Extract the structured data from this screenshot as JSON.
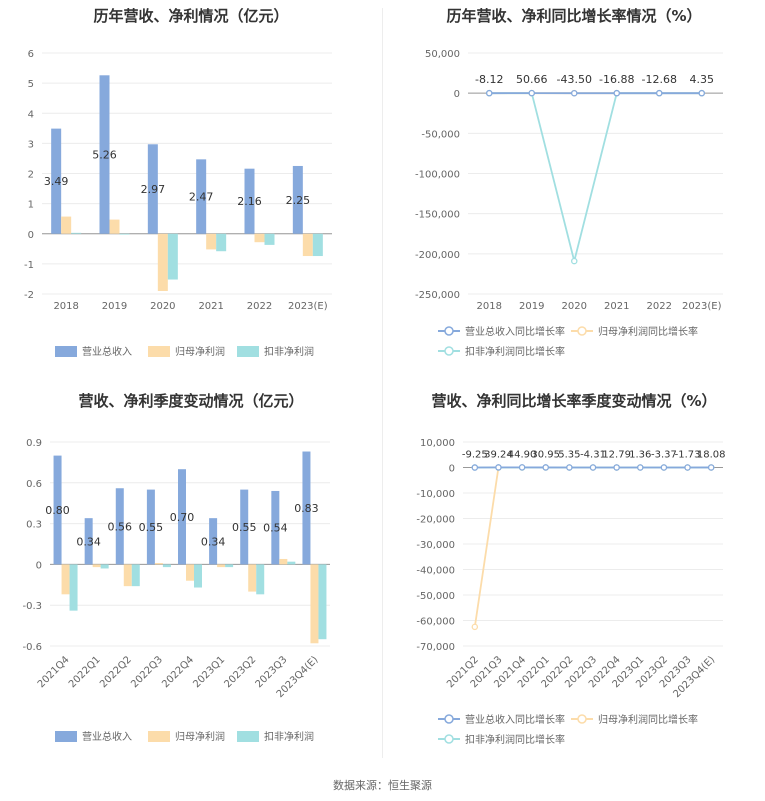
{
  "source": "数据来源：恒生聚源",
  "colors": {
    "rev": "#86a9dc",
    "net": "#fcdcaa",
    "ded": "#a1dfe1",
    "grid": "#ececec",
    "axis": "#999999",
    "text": "#666666",
    "label": "#333333"
  },
  "chart_data": [
    {
      "type": "bar",
      "title": "历年营收、净利情况（亿元）",
      "categories": [
        "2018",
        "2019",
        "2020",
        "2021",
        "2022",
        "2023(E)"
      ],
      "ylim": [
        -2,
        6
      ],
      "yticks": [
        -2,
        -1,
        0,
        1,
        2,
        3,
        4,
        5,
        6
      ],
      "ytick_labels": [
        "-2",
        "-1",
        "0",
        "1",
        "2",
        "3",
        "4",
        "5",
        "6"
      ],
      "series": [
        {
          "name": "营业总收入",
          "values": [
            3.49,
            5.26,
            2.97,
            2.47,
            2.16,
            2.25
          ],
          "labels": [
            "3.49",
            "5.26",
            "2.97",
            "2.47",
            "2.16",
            "2.25"
          ]
        },
        {
          "name": "归母净利润",
          "values": [
            0.57,
            0.47,
            -1.9,
            -0.52,
            -0.28,
            -0.74
          ]
        },
        {
          "name": "扣非净利润",
          "values": [
            0.03,
            0.0,
            -1.52,
            -0.58,
            -0.37,
            -0.74
          ]
        }
      ],
      "legend": "bottom"
    },
    {
      "type": "line",
      "title": "历年营收、净利同比增长率情况（%）",
      "categories": [
        "2018",
        "2019",
        "2020",
        "2021",
        "2022",
        "2023(E)"
      ],
      "ylim": [
        -250000,
        50000
      ],
      "yticks": [
        50000,
        0,
        -50000,
        -100000,
        -150000,
        -200000,
        -250000
      ],
      "ytick_labels": [
        "50,000",
        "0",
        "-50,000",
        "-100,000",
        "-150,000",
        "-200,000",
        "-250,000"
      ],
      "top_labels": [
        "-8.12",
        "50.66",
        "-43.50",
        "-16.88",
        "-12.68",
        "4.35"
      ],
      "series": [
        {
          "name": "营业总收入同比增长率",
          "values": [
            -8.12,
            50.66,
            -43.5,
            -16.88,
            -12.68,
            4.35
          ]
        },
        {
          "name": "归母净利润同比增长率",
          "values": [
            0,
            0,
            0,
            0,
            0,
            0
          ]
        },
        {
          "name": "扣非净利润同比增长率",
          "values": [
            0,
            0,
            -209000,
            0,
            0,
            0
          ]
        }
      ],
      "legend": "bottom"
    },
    {
      "type": "bar",
      "title": "营收、净利季度变动情况（亿元）",
      "categories": [
        "2021Q4",
        "2022Q1",
        "2022Q2",
        "2022Q3",
        "2022Q4",
        "2023Q1",
        "2023Q2",
        "2023Q3",
        "2023Q4(E)"
      ],
      "ylim": [
        -0.6,
        0.9
      ],
      "yticks": [
        -0.6,
        -0.3,
        0,
        0.3,
        0.6,
        0.9
      ],
      "ytick_labels": [
        "-0.6",
        "-0.3",
        "0",
        "0.3",
        "0.6",
        "0.9"
      ],
      "series": [
        {
          "name": "营业总收入",
          "values": [
            0.8,
            0.34,
            0.56,
            0.55,
            0.7,
            0.34,
            0.55,
            0.54,
            0.83
          ],
          "labels": [
            "0.80",
            "0.34",
            "0.56",
            "0.55",
            "0.70",
            "0.34",
            "0.55",
            "0.54",
            "0.83"
          ]
        },
        {
          "name": "归母净利润",
          "values": [
            -0.22,
            -0.02,
            -0.16,
            0.01,
            -0.12,
            -0.02,
            -0.2,
            0.04,
            -0.58
          ]
        },
        {
          "name": "扣非净利润",
          "values": [
            -0.34,
            -0.03,
            -0.16,
            -0.02,
            -0.17,
            -0.02,
            -0.22,
            0.02,
            -0.55
          ]
        }
      ],
      "legend": "bottom"
    },
    {
      "type": "line",
      "title": "营收、净利同比增长率季度变动情况（%）",
      "categories": [
        "2021Q2",
        "2021Q3",
        "2021Q4",
        "2022Q1",
        "2022Q2",
        "2022Q3",
        "2022Q4",
        "2023Q1",
        "2023Q2",
        "2023Q3",
        "2023Q4(E)"
      ],
      "ylim": [
        -70000,
        10000
      ],
      "yticks": [
        10000,
        0,
        -10000,
        -20000,
        -30000,
        -40000,
        -50000,
        -60000,
        -70000
      ],
      "ytick_labels": [
        "10,000",
        "0",
        "-10,000",
        "-20,000",
        "-30,000",
        "-40,000",
        "-50,000",
        "-60,000",
        "-70,000"
      ],
      "top_labels": [
        "-9.25",
        "39.24",
        "44.90",
        "30.95",
        "5.35",
        "-4.31",
        "12.79",
        "1.36",
        "-3.37",
        "-1.73",
        "18.08"
      ],
      "series": [
        {
          "name": "营业总收入同比增长率",
          "values": [
            -9.25,
            39.24,
            44.9,
            30.95,
            5.35,
            -4.31,
            12.79,
            1.36,
            -3.37,
            -1.73,
            18.08
          ]
        },
        {
          "name": "归母净利润同比增长率",
          "values": [
            -62500,
            0,
            0,
            0,
            0,
            0,
            0,
            0,
            0,
            0,
            0
          ]
        },
        {
          "name": "扣非净利润同比增长率",
          "values": [
            0,
            0,
            0,
            0,
            0,
            0,
            0,
            0,
            0,
            0,
            0
          ]
        }
      ],
      "legend": "bottom"
    }
  ]
}
